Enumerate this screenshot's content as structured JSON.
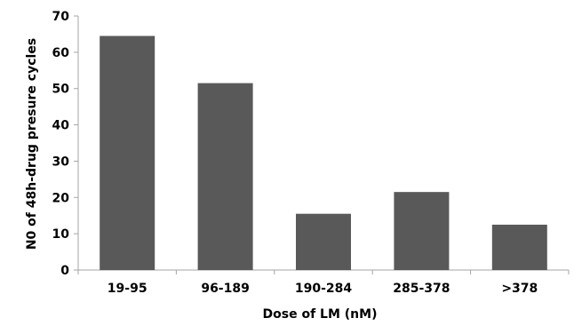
{
  "chart_data": {
    "type": "bar",
    "categories": [
      "19-95",
      "96-189",
      "190-284",
      "285-378",
      ">378"
    ],
    "values": [
      64.5,
      51.5,
      15.5,
      21.5,
      12.5
    ],
    "xlabel": "Dose of LM (nM)",
    "ylabel": "N0 of 48h-drug presure cycles",
    "ylim": [
      0,
      70
    ],
    "yticks": [
      0,
      10,
      20,
      30,
      40,
      50,
      60,
      70
    ],
    "grid": false,
    "bar_color": "#595959",
    "axis_color": "#a6a6a6"
  }
}
